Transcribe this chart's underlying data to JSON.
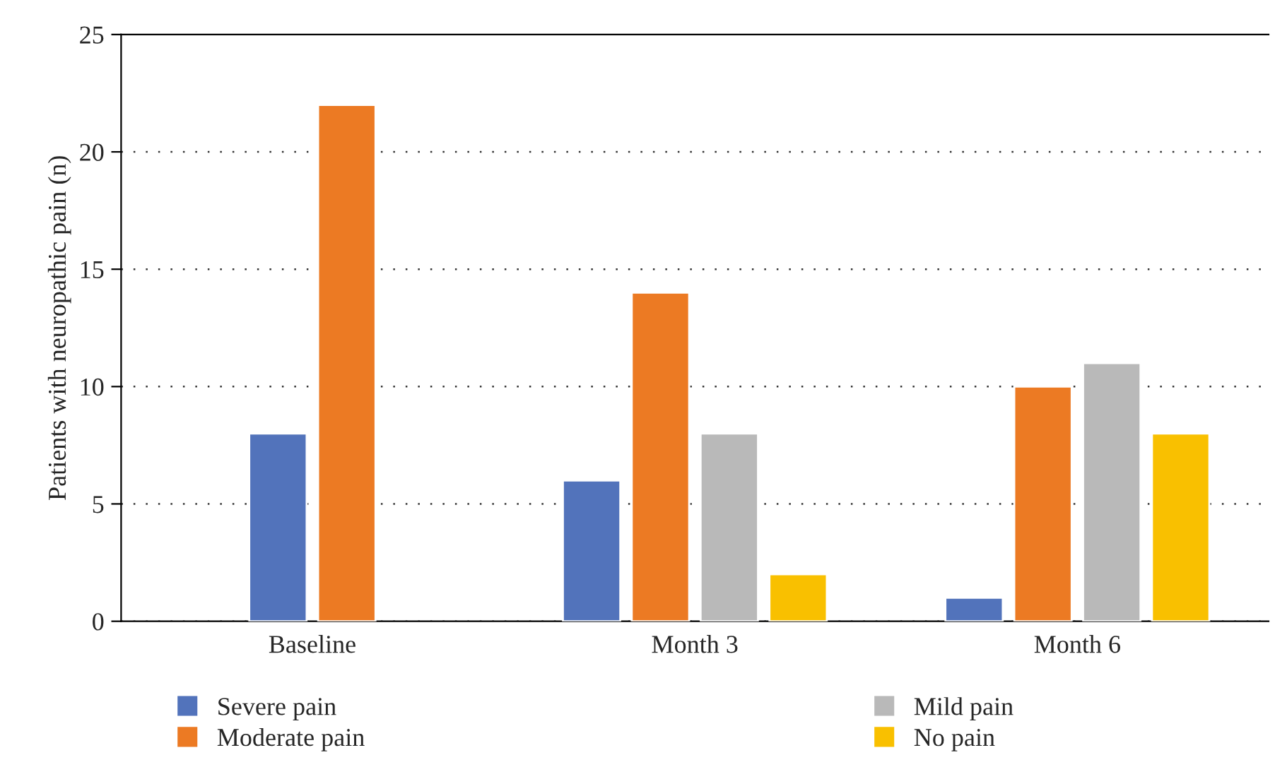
{
  "chart_data": {
    "type": "bar",
    "ylabel": "Patients with neuropathic pain (n)",
    "categories": [
      "Baseline",
      "Month 3",
      "Month 6"
    ],
    "series": [
      {
        "name": "Severe pain",
        "color": "#5273bb",
        "values": [
          8,
          6,
          1
        ]
      },
      {
        "name": "Moderate pain",
        "color": "#ec7a23",
        "values": [
          22,
          14,
          10
        ]
      },
      {
        "name": "Mild pain",
        "color": "#b9b9b9",
        "values": [
          null,
          8,
          11
        ]
      },
      {
        "name": "No pain",
        "color": "#f9c000",
        "values": [
          null,
          2,
          8
        ]
      }
    ],
    "ylim": [
      0,
      25
    ],
    "yticks": [
      0,
      5,
      10,
      15,
      20,
      25
    ],
    "grid": "y",
    "legend": "bottom"
  }
}
